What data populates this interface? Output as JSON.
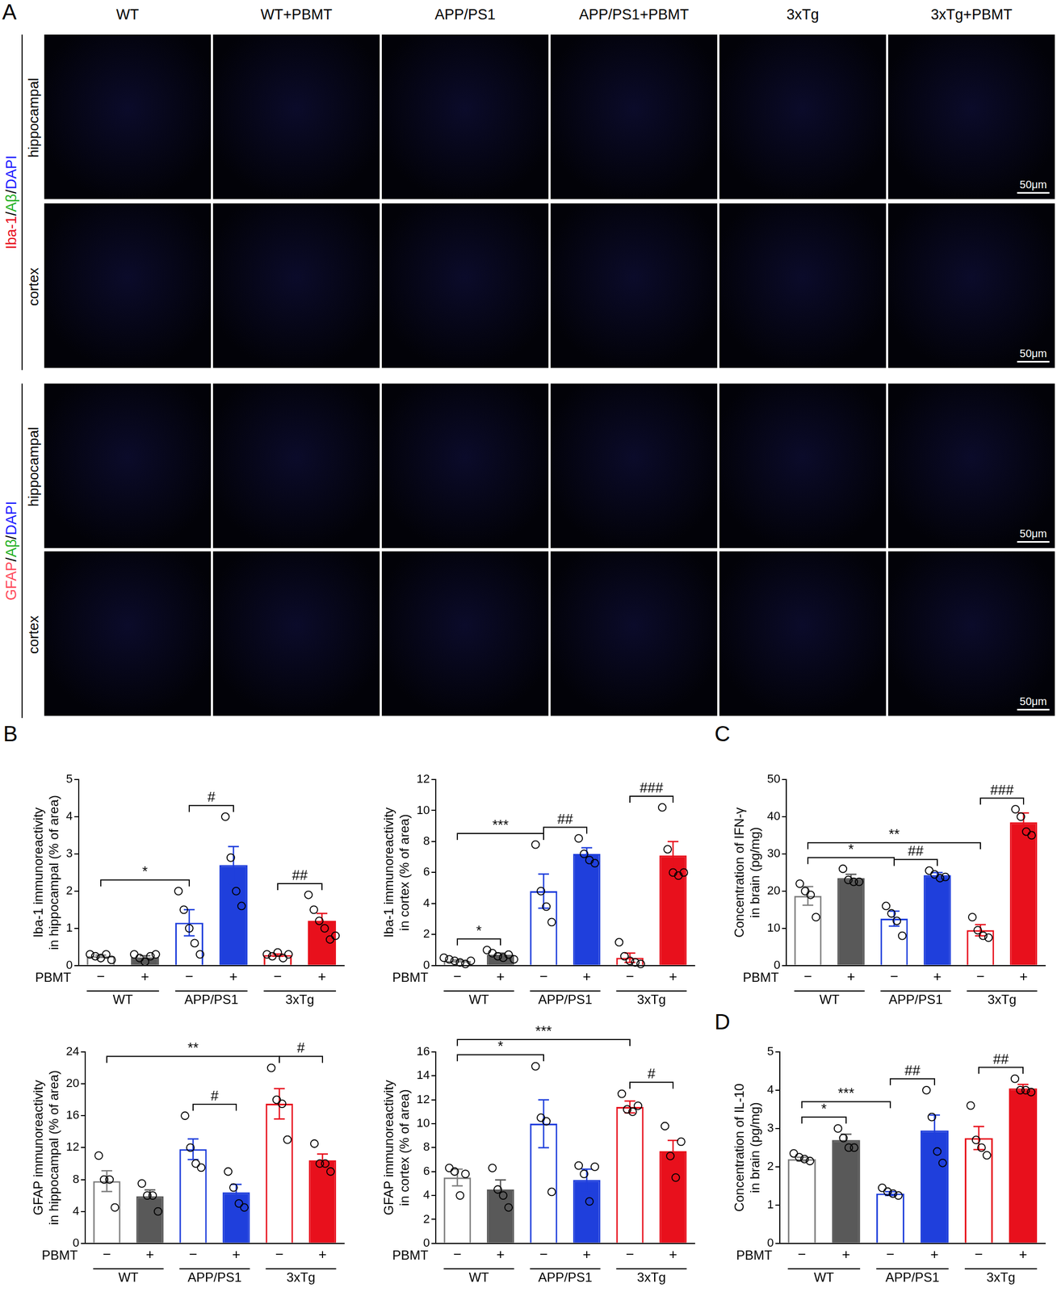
{
  "panel_labels": [
    "A",
    "B",
    "C",
    "D"
  ],
  "panel_a": {
    "columns": [
      "WT",
      "WT+PBMT",
      "APP/PS1",
      "APP/PS1+PBMT",
      "3xTg",
      "3xTg+PBMT"
    ],
    "blocks": [
      {
        "stain": [
          {
            "text": "Iba-1",
            "color": "#e8101c"
          },
          {
            "text": "/",
            "color": "#000000"
          },
          {
            "text": "Aβ",
            "color": "#22b022"
          },
          {
            "text": "/",
            "color": "#000000"
          },
          {
            "text": "DAPI",
            "color": "#1a1aff"
          }
        ],
        "rows": [
          "hippocampal",
          "cortex"
        ]
      },
      {
        "stain": [
          {
            "text": "GFAP",
            "color": "#ff4a5a"
          },
          {
            "text": "/",
            "color": "#000000"
          },
          {
            "text": "Aβ",
            "color": "#22b022"
          },
          {
            "text": "/",
            "color": "#000000"
          },
          {
            "text": "DAPI",
            "color": "#1a1aff"
          }
        ],
        "rows": [
          "hippocampal",
          "cortex"
        ]
      }
    ],
    "scale_bar": "50μm"
  },
  "chart_data": [
    {
      "type": "bar",
      "y_label": [
        "Iba-1 immunoreactivity",
        "in hippocampal (% of area)"
      ],
      "x_label": "PBMT",
      "categories": [
        "−",
        "+",
        "−",
        "+",
        "−",
        "+"
      ],
      "groups": [
        {
          "label": "WT",
          "from": 0,
          "to": 1
        },
        {
          "label": "APP/PS1",
          "from": 2,
          "to": 3
        },
        {
          "label": "3xTg",
          "from": 4,
          "to": 5
        }
      ],
      "values": [
        0.25,
        0.22,
        1.15,
        2.7,
        0.28,
        1.2
      ],
      "errors": [
        0.03,
        0.04,
        0.35,
        0.5,
        0.03,
        0.2
      ],
      "points": [
        [
          0.3,
          0.25,
          0.2,
          0.3,
          0.15
        ],
        [
          0.3,
          0.2,
          0.1,
          0.25,
          0.3
        ],
        [
          2.0,
          1.5,
          1.0,
          0.6,
          0.3
        ],
        [
          4.0,
          2.9,
          2.0,
          1.6
        ],
        [
          0.3,
          0.25,
          0.35,
          0.2,
          0.3
        ],
        [
          1.9,
          1.5,
          1.2,
          1.0,
          0.7,
          0.8
        ]
      ],
      "colors": [
        "#7f7f7f",
        "#595959",
        "#1f3fdc",
        "#1f3fdc",
        "#e8101c",
        "#e8101c"
      ],
      "ylim": [
        0,
        5
      ],
      "yticks": [
        0,
        1,
        2,
        3,
        4,
        5
      ],
      "grid": false,
      "significance": [
        {
          "from": 2,
          "to": 3,
          "label": "#"
        },
        {
          "from": 4,
          "to": 5,
          "label": "##"
        },
        {
          "from": 0,
          "to": 2,
          "label": "*"
        }
      ]
    },
    {
      "type": "bar",
      "y_label": [
        "Iba-1 immunoreactivity",
        "in cortex (% of area)"
      ],
      "x_label": "PBMT",
      "categories": [
        "−",
        "+",
        "−",
        "+",
        "−",
        "+"
      ],
      "groups": [
        {
          "label": "WT",
          "from": 0,
          "to": 1
        },
        {
          "label": "APP/PS1",
          "from": 2,
          "to": 3
        },
        {
          "label": "3xTg",
          "from": 4,
          "to": 5
        }
      ],
      "values": [
        0.3,
        0.7,
        4.8,
        7.2,
        0.5,
        7.1
      ],
      "errors": [
        0.06,
        0.1,
        1.1,
        0.4,
        0.3,
        0.9
      ],
      "points": [
        [
          0.5,
          0.4,
          0.3,
          0.2,
          0.1,
          0.3
        ],
        [
          1.0,
          0.8,
          0.6,
          0.5,
          0.7,
          0.4
        ],
        [
          7.8,
          4.8,
          3.8,
          2.8
        ],
        [
          8.2,
          7.2,
          6.8,
          6.6
        ],
        [
          1.5,
          0.6,
          0.3,
          0.2,
          0.1
        ],
        [
          10.2,
          7.5,
          6.0,
          5.8,
          6.0
        ]
      ],
      "colors": [
        "#7f7f7f",
        "#595959",
        "#1f3fdc",
        "#1f3fdc",
        "#e8101c",
        "#e8101c"
      ],
      "ylim": [
        0,
        12
      ],
      "yticks": [
        0,
        2,
        4,
        6,
        8,
        10,
        12
      ],
      "grid": false,
      "significance": [
        {
          "from": 0,
          "to": 1,
          "label": "*"
        },
        {
          "from": 2,
          "to": 3,
          "label": "##"
        },
        {
          "from": 4,
          "to": 5,
          "label": "###"
        },
        {
          "from": 0,
          "to": 2,
          "label": "***"
        }
      ]
    },
    {
      "type": "bar",
      "y_label": [
        "GFAP immunoreactivity",
        "in hippocampal (% of area)"
      ],
      "x_label": "PBMT",
      "categories": [
        "−",
        "+",
        "−",
        "+",
        "−",
        "+"
      ],
      "groups": [
        {
          "label": "WT",
          "from": 0,
          "to": 1
        },
        {
          "label": "APP/PS1",
          "from": 2,
          "to": 3
        },
        {
          "label": "3xTg",
          "from": 4,
          "to": 5
        }
      ],
      "values": [
        7.8,
        5.9,
        11.8,
        6.4,
        17.5,
        10.4
      ],
      "errors": [
        1.3,
        0.8,
        1.3,
        1.0,
        1.9,
        0.8
      ],
      "points": [
        [
          11,
          8,
          8,
          4.5
        ],
        [
          7.5,
          6,
          6,
          4
        ],
        [
          16,
          12,
          10,
          9.5
        ],
        [
          9,
          7,
          5,
          4.5
        ],
        [
          22,
          18,
          17.5,
          13
        ],
        [
          12.5,
          10,
          10,
          9
        ]
      ],
      "colors": [
        "#7f7f7f",
        "#595959",
        "#1f3fdc",
        "#1f3fdc",
        "#e8101c",
        "#e8101c"
      ],
      "ylim": [
        0,
        24
      ],
      "yticks": [
        0,
        4,
        8,
        12,
        16,
        20,
        24
      ],
      "grid": false,
      "significance": [
        {
          "from": 2,
          "to": 3,
          "label": "#"
        },
        {
          "from": 4,
          "to": 5,
          "label": "#"
        },
        {
          "from": 0,
          "to": 4,
          "label": "**"
        }
      ]
    },
    {
      "type": "bar",
      "y_label": [
        "GFAP immunoreactivity",
        "in cortex (% of area)"
      ],
      "x_label": "PBMT",
      "categories": [
        "−",
        "+",
        "−",
        "+",
        "−",
        "+"
      ],
      "groups": [
        {
          "label": "WT",
          "from": 0,
          "to": 1
        },
        {
          "label": "APP/PS1",
          "from": 2,
          "to": 3
        },
        {
          "label": "3xTg",
          "from": 4,
          "to": 5
        }
      ],
      "values": [
        5.5,
        4.5,
        10.0,
        5.3,
        11.4,
        7.7
      ],
      "errors": [
        0.7,
        0.8,
        2.0,
        0.9,
        0.5,
        0.9
      ],
      "points": [
        [
          6.3,
          6,
          4,
          5.8
        ],
        [
          6.3,
          4.5,
          4,
          3
        ],
        [
          14.8,
          10.5,
          10.2,
          4.3
        ],
        [
          6.5,
          5.8,
          3.5,
          6.4
        ],
        [
          12.5,
          11.2,
          11,
          11.5
        ],
        [
          9.8,
          7.3,
          5.5,
          8.5
        ]
      ],
      "colors": [
        "#7f7f7f",
        "#595959",
        "#1f3fdc",
        "#1f3fdc",
        "#e8101c",
        "#e8101c"
      ],
      "ylim": [
        0,
        16
      ],
      "yticks": [
        0,
        2,
        4,
        6,
        8,
        10,
        12,
        14,
        16
      ],
      "grid": false,
      "significance": [
        {
          "from": 4,
          "to": 5,
          "label": "#"
        },
        {
          "from": 0,
          "to": 2,
          "label": "*"
        },
        {
          "from": 0,
          "to": 4,
          "label": "***"
        }
      ]
    },
    {
      "type": "bar",
      "y_label": [
        "Concentration of IFN-γ",
        "in brain (pg/mg)"
      ],
      "x_label": "PBMT",
      "categories": [
        "−",
        "+",
        "−",
        "+",
        "−",
        "+"
      ],
      "groups": [
        {
          "label": "WT",
          "from": 0,
          "to": 1
        },
        {
          "label": "APP/PS1",
          "from": 2,
          "to": 3
        },
        {
          "label": "3xTg",
          "from": 4,
          "to": 5
        }
      ],
      "values": [
        18.7,
        23.5,
        12.6,
        24.3,
        9.5,
        38.5
      ],
      "errors": [
        2.5,
        1.0,
        2.0,
        0.7,
        1.5,
        2.5
      ],
      "points": [
        [
          22,
          20,
          19,
          13
        ],
        [
          26,
          23,
          22.5,
          22.5
        ],
        [
          16,
          14,
          12,
          8
        ],
        [
          25.5,
          24.5,
          23.5,
          23.8
        ],
        [
          13,
          9.5,
          8,
          7.5
        ],
        [
          42,
          40,
          36,
          35
        ]
      ],
      "colors": [
        "#7f7f7f",
        "#595959",
        "#1f3fdc",
        "#1f3fdc",
        "#e8101c",
        "#e8101c"
      ],
      "ylim": [
        0,
        50
      ],
      "yticks": [
        0,
        10,
        20,
        30,
        40,
        50
      ],
      "grid": false,
      "significance": [
        {
          "from": 2,
          "to": 3,
          "label": "##"
        },
        {
          "from": 4,
          "to": 5,
          "label": "###"
        },
        {
          "from": 0,
          "to": 2,
          "label": "*"
        },
        {
          "from": 0,
          "to": 4,
          "label": "**"
        }
      ]
    },
    {
      "type": "bar",
      "y_label": [
        "Concentration of IL-10",
        "in brain (pg/mg)"
      ],
      "x_label": "PBMT",
      "categories": [
        "−",
        "+",
        "−",
        "+",
        "−",
        "+"
      ],
      "groups": [
        {
          "label": "WT",
          "from": 0,
          "to": 1
        },
        {
          "label": "APP/PS1",
          "from": 2,
          "to": 3
        },
        {
          "label": "3xTg",
          "from": 4,
          "to": 5
        }
      ],
      "values": [
        2.2,
        2.7,
        1.3,
        2.95,
        2.75,
        4.05
      ],
      "errors": [
        0.05,
        0.15,
        0.05,
        0.4,
        0.3,
        0.1
      ],
      "points": [
        [
          2.35,
          2.25,
          2.2,
          2.15
        ],
        [
          3.0,
          2.75,
          2.5,
          2.5
        ],
        [
          1.45,
          1.35,
          1.3,
          1.25
        ],
        [
          4.0,
          3.3,
          2.4,
          2.1
        ],
        [
          3.6,
          2.7,
          2.5,
          2.3
        ],
        [
          4.3,
          4.0,
          4.0,
          3.95
        ]
      ],
      "colors": [
        "#7f7f7f",
        "#595959",
        "#1f3fdc",
        "#1f3fdc",
        "#e8101c",
        "#e8101c"
      ],
      "ylim": [
        0,
        5
      ],
      "yticks": [
        0,
        1,
        2,
        3,
        4,
        5
      ],
      "grid": false,
      "significance": [
        {
          "from": 0,
          "to": 1,
          "label": "*"
        },
        {
          "from": 2,
          "to": 3,
          "label": "##"
        },
        {
          "from": 4,
          "to": 5,
          "label": "##"
        },
        {
          "from": 0,
          "to": 2,
          "label": "***"
        }
      ]
    }
  ]
}
